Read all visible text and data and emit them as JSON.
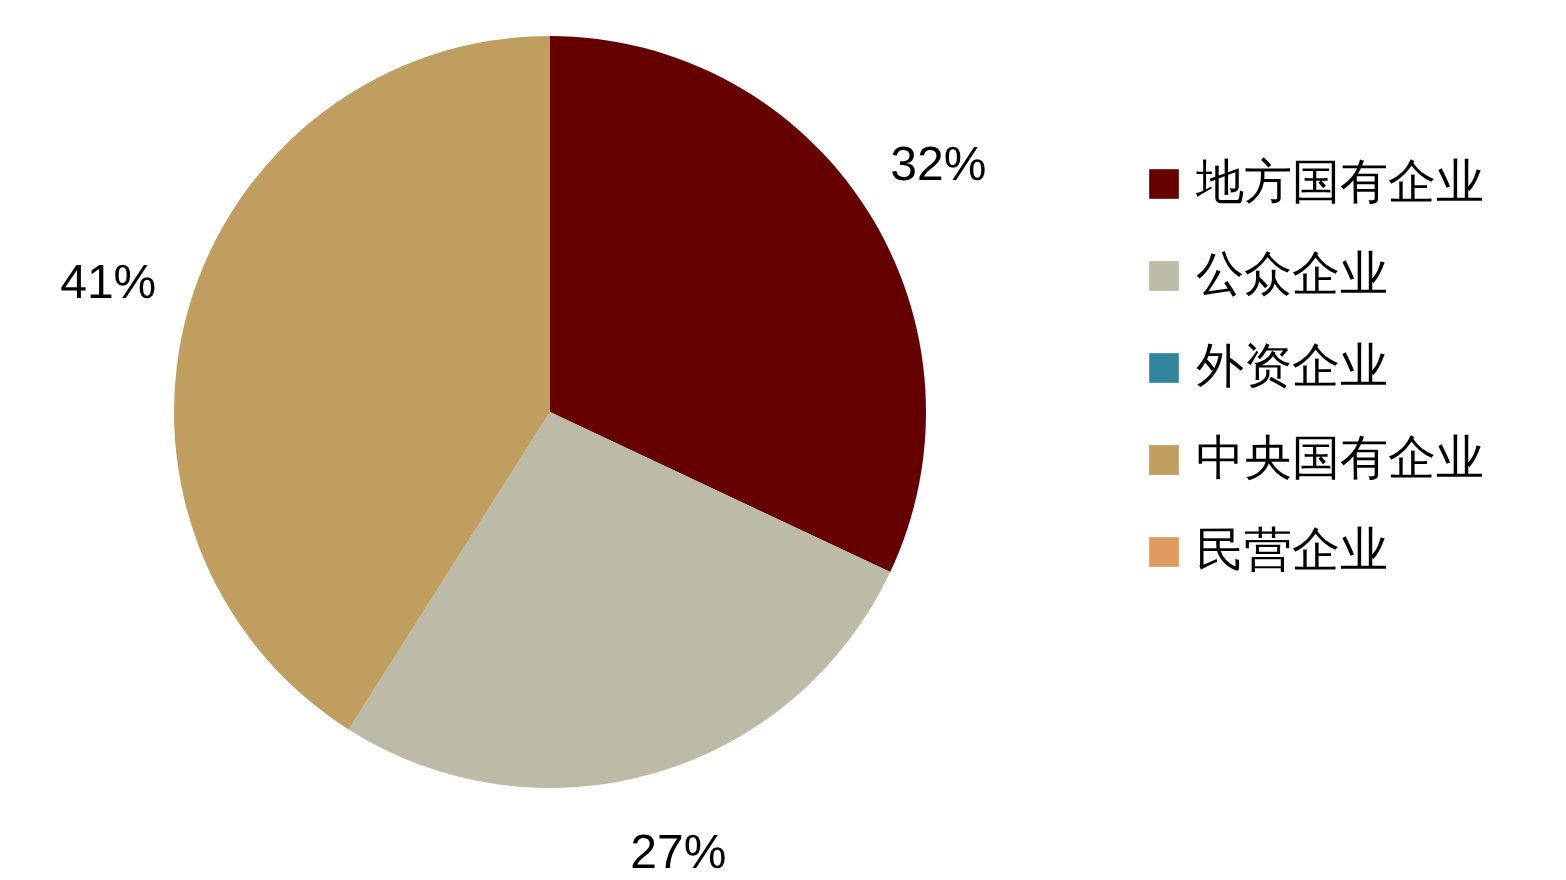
{
  "chart_data": {
    "type": "pie",
    "categories": [
      "地方国有企业",
      "公众企业",
      "外资企业",
      "中央国有企业",
      "民营企业"
    ],
    "values": [
      32,
      27,
      0,
      41,
      0
    ],
    "colors": [
      "#660000",
      "#bcbba8",
      "#31859c",
      "#bf9e5f",
      "#e0995e"
    ],
    "value_labels": [
      "32%",
      "27%",
      null,
      "41%",
      null
    ],
    "legend": "right"
  }
}
